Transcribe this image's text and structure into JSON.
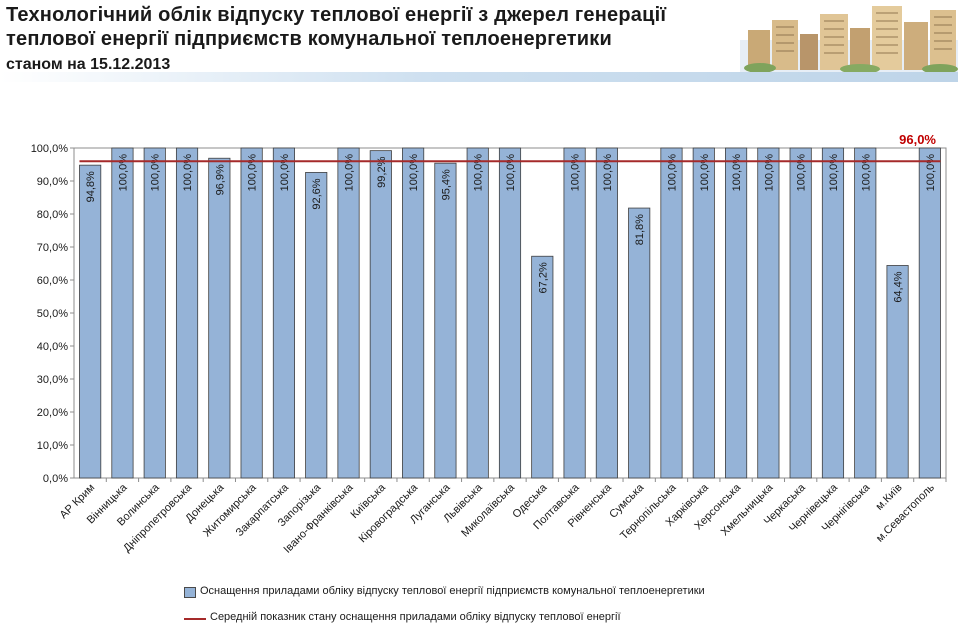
{
  "header": {
    "title_line1": "Технологічний облік відпуску теплової енергії з джерел генерації",
    "title_line2": "теплової енергії підприємств комунальної теплоенергетики",
    "subtitle": "станом на 15.12.2013"
  },
  "colors": {
    "bar": "#95b3d7",
    "bar_border": "#3f3f3f",
    "avg_line": "#a52a2a",
    "avg_label": "#c00000"
  },
  "chart_data": {
    "type": "bar",
    "categories": [
      "АР Крим",
      "Вінницька",
      "Волинська",
      "Дніпропетровська",
      "Донецька",
      "Житомирська",
      "Закарпатська",
      "Запорізька",
      "Івано-Франківська",
      "Київська",
      "Кіровоградська",
      "Луганська",
      "Львівська",
      "Миколаївська",
      "Одеська",
      "Полтавська",
      "Рівненська",
      "Сумська",
      "Тернопільська",
      "Харківська",
      "Херсонська",
      "Хмельницька",
      "Черкаська",
      "Чернівецька",
      "Чернігівська",
      "м.Київ",
      "м.Севастополь"
    ],
    "series": [
      {
        "name": "Оснащення приладами обліку відпуску теплової енергії підприємств комунальної теплоенергетики",
        "values": [
          94.8,
          100.0,
          100.0,
          100.0,
          96.9,
          100.0,
          100.0,
          92.6,
          100.0,
          99.2,
          100.0,
          95.4,
          100.0,
          100.0,
          67.2,
          100.0,
          100.0,
          81.8,
          100.0,
          100.0,
          100.0,
          100.0,
          100.0,
          100.0,
          100.0,
          64.4,
          100.0
        ],
        "data_labels": [
          "94,8%",
          "100,0%",
          "100,0%",
          "100,0%",
          "96,9%",
          "100,0%",
          "100,0%",
          "92,6%",
          "100,0%",
          "99,2%",
          "100,0%",
          "95,4%",
          "100,0%",
          "100,0%",
          "67,2%",
          "100,0%",
          "100,0%",
          "81,8%",
          "100,0%",
          "100,0%",
          "100,0%",
          "100,0%",
          "100,0%",
          "100,0%",
          "100,0%",
          "64,4%",
          "100,0%"
        ]
      }
    ],
    "average": {
      "name": "Середній показник стану оснащення приладами обліку відпуску теплової енергії",
      "value": 96.0,
      "label": "96,0%"
    },
    "y_ticks": [
      "0,0%",
      "10,0%",
      "20,0%",
      "30,0%",
      "40,0%",
      "50,0%",
      "60,0%",
      "70,0%",
      "80,0%",
      "90,0%",
      "100,0%"
    ],
    "ylim": [
      0,
      100
    ],
    "grid": false,
    "legend_position": "bottom"
  },
  "legend": {
    "bar_label": "Оснащення приладами обліку відпуску теплової енергії підприємств комунальної теплоенергетики",
    "line_label": "Середній показник стану оснащення приладами обліку відпуску теплової енергії"
  },
  "decor": {
    "header_image": "city-buildings-illustration"
  }
}
